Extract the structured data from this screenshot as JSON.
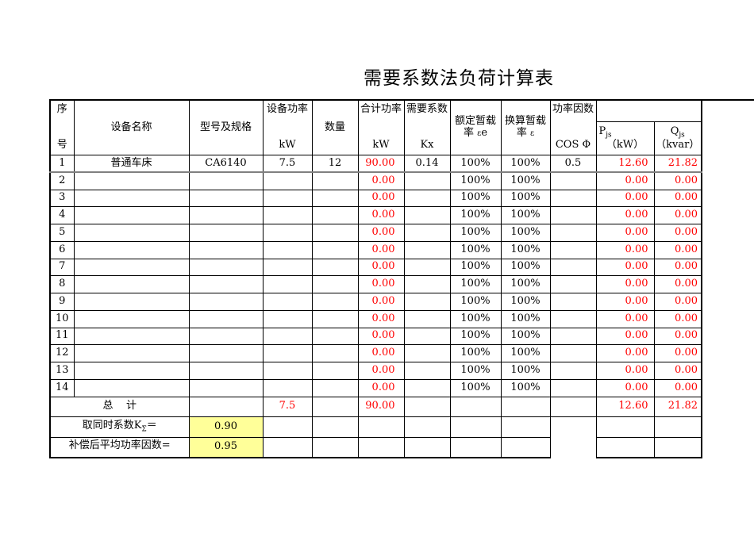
{
  "title": "需要系数法负荷计算表",
  "colors": {
    "computed_text": "#FF0000",
    "input_highlight": "#FFFF99",
    "freeze_divider": "#808080",
    "border": "#000000"
  },
  "table": {
    "headers": {
      "seq_top": "序",
      "seq_bottom": "号",
      "device_name": "设备名称",
      "model": "型号及规格",
      "device_power_top": "设备功率",
      "device_power_unit": "kW",
      "quantity": "数量",
      "total_power_top": "合计功率",
      "total_power_unit": "kW",
      "demand_top": "需要系数",
      "demand_unit": "Kx",
      "rated_duty_line1": "额定暂载",
      "rated_duty_l2a": "率 ",
      "rated_duty_l2b": "ε",
      "rated_duty_l2c": "e",
      "converted_duty_line1": "换算暂载",
      "converted_duty_l2a": "率 ",
      "converted_duty_l2b": "ε",
      "converted_duty_l2c": "",
      "power_factor_top": "功率因数",
      "power_factor_unit": "COS Φ",
      "p_base": "P",
      "p_sub": "js",
      "p_unit": "（kW）",
      "q_base": "Q",
      "q_sub": "js",
      "q_unit": "（kvar）"
    },
    "rows": [
      {
        "seq": "1",
        "name": "普通车床",
        "model": "CA6140",
        "power": "7.5",
        "qty": "12",
        "total": "90.00",
        "kx": "0.14",
        "rated": "100%",
        "conv": "100%",
        "cos": "0.5",
        "p": "12.60",
        "q": "21.82"
      },
      {
        "seq": "2",
        "name": "",
        "model": "",
        "power": "",
        "qty": "",
        "total": "0.00",
        "kx": "",
        "rated": "100%",
        "conv": "100%",
        "cos": "",
        "p": "0.00",
        "q": "0.00"
      },
      {
        "seq": "3",
        "name": "",
        "model": "",
        "power": "",
        "qty": "",
        "total": "0.00",
        "kx": "",
        "rated": "100%",
        "conv": "100%",
        "cos": "",
        "p": "0.00",
        "q": "0.00"
      },
      {
        "seq": "4",
        "name": "",
        "model": "",
        "power": "",
        "qty": "",
        "total": "0.00",
        "kx": "",
        "rated": "100%",
        "conv": "100%",
        "cos": "",
        "p": "0.00",
        "q": "0.00"
      },
      {
        "seq": "5",
        "name": "",
        "model": "",
        "power": "",
        "qty": "",
        "total": "0.00",
        "kx": "",
        "rated": "100%",
        "conv": "100%",
        "cos": "",
        "p": "0.00",
        "q": "0.00"
      },
      {
        "seq": "6",
        "name": "",
        "model": "",
        "power": "",
        "qty": "",
        "total": "0.00",
        "kx": "",
        "rated": "100%",
        "conv": "100%",
        "cos": "",
        "p": "0.00",
        "q": "0.00"
      },
      {
        "seq": "7",
        "name": "",
        "model": "",
        "power": "",
        "qty": "",
        "total": "0.00",
        "kx": "",
        "rated": "100%",
        "conv": "100%",
        "cos": "",
        "p": "0.00",
        "q": "0.00"
      },
      {
        "seq": "8",
        "name": "",
        "model": "",
        "power": "",
        "qty": "",
        "total": "0.00",
        "kx": "",
        "rated": "100%",
        "conv": "100%",
        "cos": "",
        "p": "0.00",
        "q": "0.00"
      },
      {
        "seq": "9",
        "name": "",
        "model": "",
        "power": "",
        "qty": "",
        "total": "0.00",
        "kx": "",
        "rated": "100%",
        "conv": "100%",
        "cos": "",
        "p": "0.00",
        "q": "0.00"
      },
      {
        "seq": "10",
        "name": "",
        "model": "",
        "power": "",
        "qty": "",
        "total": "0.00",
        "kx": "",
        "rated": "100%",
        "conv": "100%",
        "cos": "",
        "p": "0.00",
        "q": "0.00"
      },
      {
        "seq": "11",
        "name": "",
        "model": "",
        "power": "",
        "qty": "",
        "total": "0.00",
        "kx": "",
        "rated": "100%",
        "conv": "100%",
        "cos": "",
        "p": "0.00",
        "q": "0.00"
      },
      {
        "seq": "12",
        "name": "",
        "model": "",
        "power": "",
        "qty": "",
        "total": "0.00",
        "kx": "",
        "rated": "100%",
        "conv": "100%",
        "cos": "",
        "p": "0.00",
        "q": "0.00"
      },
      {
        "seq": "13",
        "name": "",
        "model": "",
        "power": "",
        "qty": "",
        "total": "0.00",
        "kx": "",
        "rated": "100%",
        "conv": "100%",
        "cos": "",
        "p": "0.00",
        "q": "0.00"
      },
      {
        "seq": "14",
        "name": "",
        "model": "",
        "power": "",
        "qty": "",
        "total": "0.00",
        "kx": "",
        "rated": "100%",
        "conv": "100%",
        "cos": "",
        "p": "0.00",
        "q": "0.00"
      }
    ],
    "total_row": {
      "label": "总    计",
      "model": "",
      "power": "7.5",
      "qty": "",
      "total": "90.00",
      "p": "12.60",
      "q": "21.82"
    },
    "footer_rows": [
      {
        "label_pre": "取同时系数K",
        "label_sub": "Σ",
        "label_post": "＝",
        "value": "0.90"
      },
      {
        "label_pre": "补偿后平均功率因数=",
        "label_sub": "",
        "label_post": "",
        "value": "0.95"
      }
    ]
  }
}
